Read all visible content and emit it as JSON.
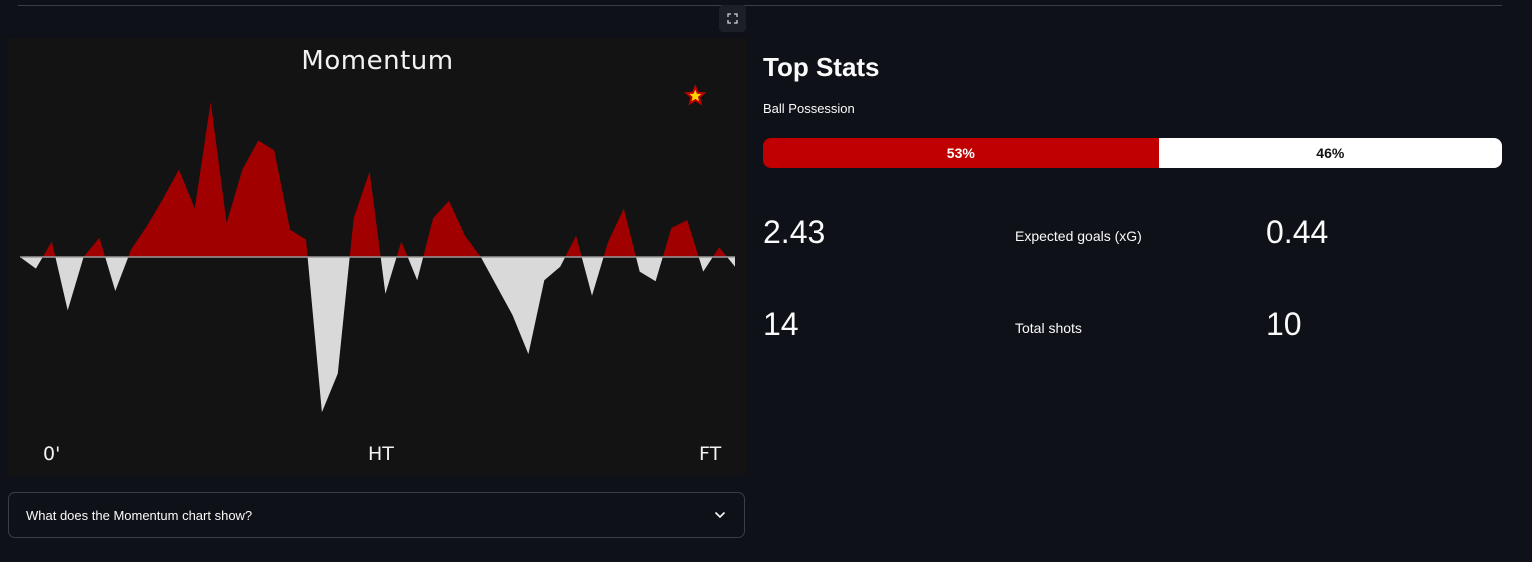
{
  "chart_data": {
    "type": "area",
    "title": "Momentum",
    "x_tick_labels": [
      "0'",
      "HT",
      "FT"
    ],
    "x_unit": "minutes",
    "x": [
      0,
      2,
      4,
      6,
      8,
      10,
      12,
      14,
      16,
      18,
      20,
      22,
      24,
      26,
      28,
      30,
      32,
      34,
      36,
      38,
      40,
      42,
      44,
      46,
      48,
      50,
      52,
      54,
      56,
      58,
      60,
      62,
      64,
      66,
      68,
      70,
      72,
      74,
      76,
      78,
      80,
      82,
      84,
      86,
      88,
      90
    ],
    "home_series": {
      "color": "#a00000"
    },
    "away_series": {
      "color": "#d9d9d9"
    },
    "momentum": [
      0,
      -12,
      16,
      -55,
      0,
      20,
      -35,
      8,
      32,
      60,
      90,
      50,
      160,
      35,
      90,
      120,
      110,
      28,
      18,
      -160,
      -120,
      40,
      88,
      -38,
      16,
      -24,
      40,
      58,
      22,
      0,
      -30,
      -60,
      -100,
      -24,
      -10,
      22,
      -40,
      15,
      50,
      -15,
      -25,
      30,
      38,
      -15,
      10,
      -10
    ],
    "ylim": [
      -170,
      170
    ],
    "goal_marker": {
      "minute": 85,
      "icon": "star-icon"
    }
  },
  "toolbar": {
    "fullscreen_icon": "expand-icon"
  },
  "expander": {
    "label": "What does the Momentum chart show?",
    "icon": "chevron-down-icon"
  },
  "stats": {
    "title": "Top Stats",
    "possession": {
      "label": "Ball Possession",
      "home": 53,
      "away": 46,
      "home_label": "53%",
      "away_label": "46%",
      "home_color": "#c00000",
      "away_color": "#ffffff"
    },
    "rows": [
      {
        "name": "Expected goals (xG)",
        "home": "2.43",
        "away": "0.44"
      },
      {
        "name": "Total shots",
        "home": "14",
        "away": "10"
      }
    ]
  }
}
